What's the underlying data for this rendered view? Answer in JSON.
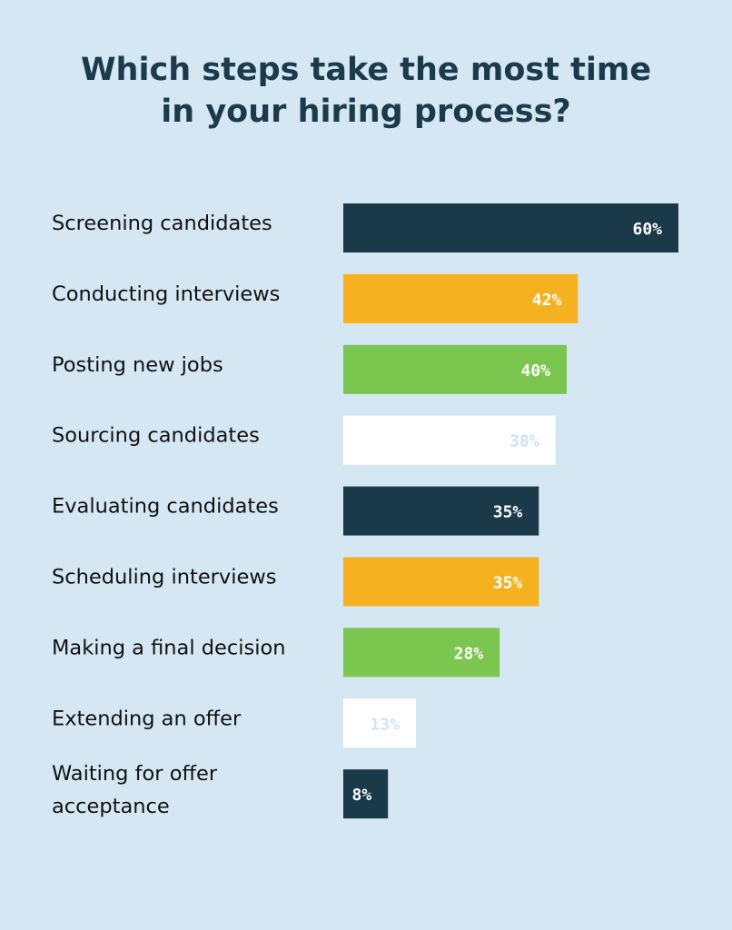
{
  "title": {
    "line1": "Which steps take the most time",
    "line2": "in your hiring process?"
  },
  "colors": {
    "background": "#d5e7f3",
    "title": "#1b3a4b",
    "navy": "#1a3a4a",
    "orange": "#f5b11f",
    "green": "#7bc64e",
    "white": "#ffffff"
  },
  "chart_data": {
    "type": "bar",
    "orientation": "horizontal",
    "title": "Which steps take the most time in your hiring process?",
    "xlabel": "",
    "ylabel": "",
    "xlim": [
      0,
      60
    ],
    "grid": false,
    "legend": "none",
    "unit": "%",
    "categories": [
      [
        "Screening candidates"
      ],
      [
        "Conducting interviews"
      ],
      [
        "Posting new jobs"
      ],
      [
        "Sourcing candidates"
      ],
      [
        "Evaluating candidates"
      ],
      [
        "Scheduling interviews"
      ],
      [
        "Making a final decision"
      ],
      [
        "Extending an offer"
      ],
      [
        "Waiting for offer",
        "acceptance"
      ]
    ],
    "values": [
      60,
      42,
      40,
      38,
      35,
      35,
      28,
      13,
      8
    ],
    "value_labels": [
      "60%",
      "42%",
      "40%",
      "38%",
      "35%",
      "35%",
      "28%",
      "13%",
      "8%"
    ],
    "bar_colors": [
      "navy",
      "orange",
      "green",
      "white",
      "navy",
      "orange",
      "green",
      "white",
      "navy"
    ],
    "label_colors": [
      "#ffffff",
      "#ffffff",
      "#ffffff",
      "#cde4f2",
      "#ffffff",
      "#ffffff",
      "#ffffff",
      "#cde4f2",
      "#ffffff"
    ]
  }
}
